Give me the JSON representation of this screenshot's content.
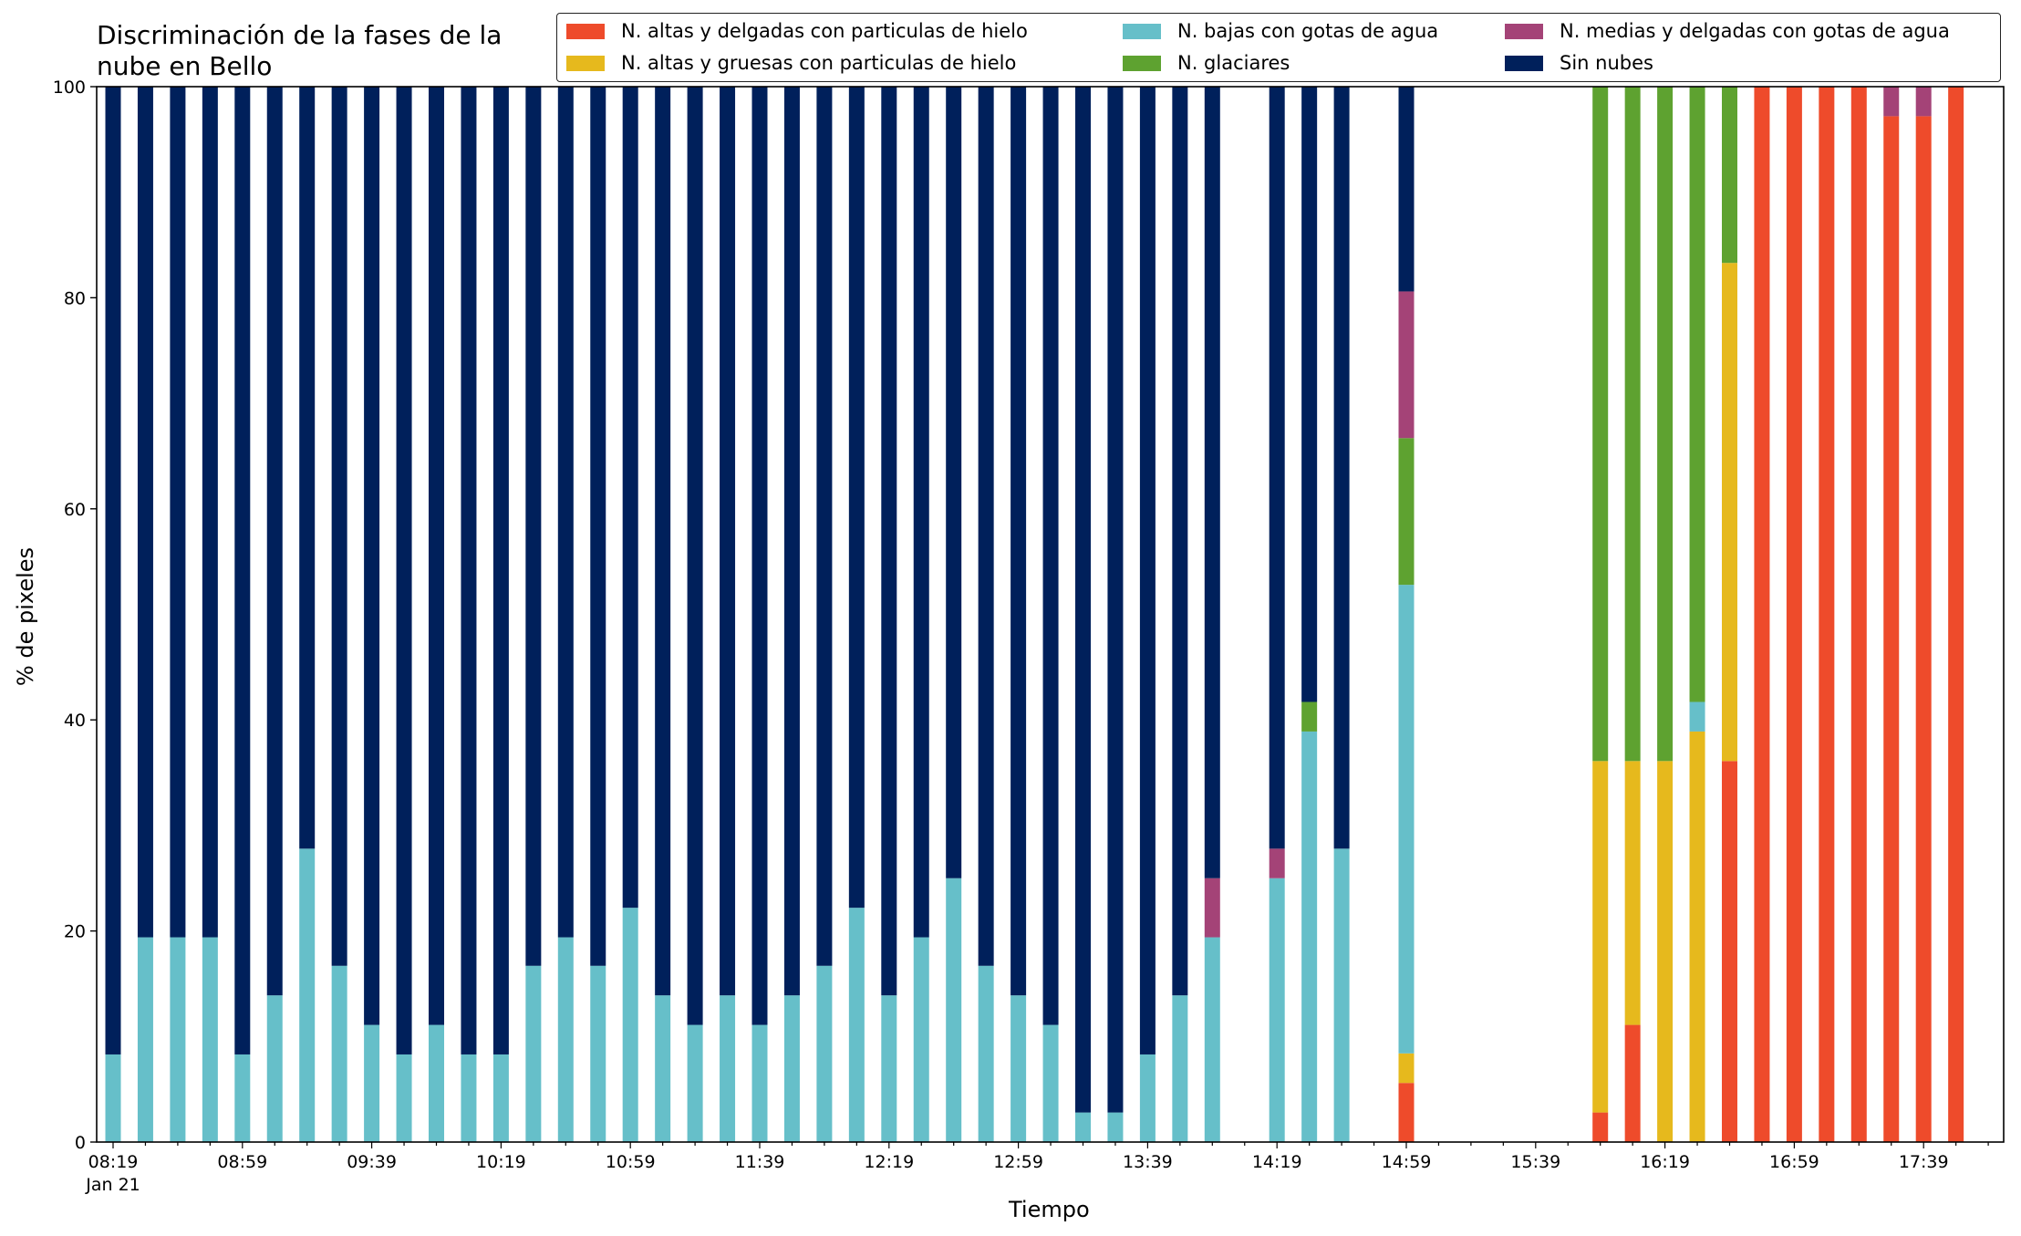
{
  "chart_data": {
    "type": "bar",
    "stacked": true,
    "title_lines": [
      "Discriminación de la fases de la",
      "nube en Bello"
    ],
    "xlabel": "Tiempo",
    "ylabel": "% de pixeles",
    "ylim": [
      0,
      100
    ],
    "y_ticks": [
      0,
      20,
      40,
      60,
      80,
      100
    ],
    "x_tick_labels": [
      "08:19",
      "08:59",
      "09:39",
      "10:19",
      "10:59",
      "11:39",
      "12:19",
      "12:59",
      "13:39",
      "14:19",
      "14:59",
      "15:39",
      "16:19",
      "16:59",
      "17:39"
    ],
    "x_date_label": "Jan 21",
    "x_start": "08:19",
    "interval_minutes": 10,
    "slot_count": 59,
    "legend_placement": "top-right",
    "legend_columns": 3,
    "grid": false,
    "series": [
      {
        "name": "N. altas y delgadas con particulas de hielo",
        "color": "#ee4b2b"
      },
      {
        "name": "N. altas y gruesas con particulas de hielo",
        "color": "#e6b91d"
      },
      {
        "name": "N. bajas con gotas de agua",
        "color": "#66bfc9"
      },
      {
        "name": "N. glaciares",
        "color": "#5ea230"
      },
      {
        "name": "N. medias y delgadas con gotas de agua",
        "color": "#a44377"
      },
      {
        "name": "Sin nubes",
        "color": "#00205b"
      }
    ],
    "bars": [
      {
        "time": "08:19",
        "values": [
          0,
          0,
          8.3,
          0,
          0,
          91.7
        ]
      },
      {
        "time": "08:29",
        "values": [
          0,
          0,
          19.4,
          0,
          0,
          80.6
        ]
      },
      {
        "time": "08:39",
        "values": [
          0,
          0,
          19.4,
          0,
          0,
          80.6
        ]
      },
      {
        "time": "08:49",
        "values": [
          0,
          0,
          19.4,
          0,
          0,
          80.6
        ]
      },
      {
        "time": "08:59",
        "values": [
          0,
          0,
          8.3,
          0,
          0,
          91.7
        ]
      },
      {
        "time": "09:09",
        "values": [
          0,
          0,
          13.9,
          0,
          0,
          86.1
        ]
      },
      {
        "time": "09:19",
        "values": [
          0,
          0,
          27.8,
          0,
          0,
          72.2
        ]
      },
      {
        "time": "09:29",
        "values": [
          0,
          0,
          16.7,
          0,
          0,
          83.3
        ]
      },
      {
        "time": "09:39",
        "values": [
          0,
          0,
          11.1,
          0,
          0,
          88.9
        ]
      },
      {
        "time": "09:49",
        "values": [
          0,
          0,
          8.3,
          0,
          0,
          91.7
        ]
      },
      {
        "time": "09:59",
        "values": [
          0,
          0,
          11.1,
          0,
          0,
          88.9
        ]
      },
      {
        "time": "10:09",
        "values": [
          0,
          0,
          8.3,
          0,
          0,
          91.7
        ]
      },
      {
        "time": "10:19",
        "values": [
          0,
          0,
          8.3,
          0,
          0,
          91.7
        ]
      },
      {
        "time": "10:29",
        "values": [
          0,
          0,
          16.7,
          0,
          0,
          83.3
        ]
      },
      {
        "time": "10:39",
        "values": [
          0,
          0,
          19.4,
          0,
          0,
          80.6
        ]
      },
      {
        "time": "10:49",
        "values": [
          0,
          0,
          16.7,
          0,
          0,
          83.3
        ]
      },
      {
        "time": "10:59",
        "values": [
          0,
          0,
          22.2,
          0,
          0,
          77.8
        ]
      },
      {
        "time": "11:09",
        "values": [
          0,
          0,
          13.9,
          0,
          0,
          86.1
        ]
      },
      {
        "time": "11:19",
        "values": [
          0,
          0,
          11.1,
          0,
          0,
          88.9
        ]
      },
      {
        "time": "11:29",
        "values": [
          0,
          0,
          13.9,
          0,
          0,
          86.1
        ]
      },
      {
        "time": "11:39",
        "values": [
          0,
          0,
          11.1,
          0,
          0,
          88.9
        ]
      },
      {
        "time": "11:49",
        "values": [
          0,
          0,
          13.9,
          0,
          0,
          86.1
        ]
      },
      {
        "time": "11:59",
        "values": [
          0,
          0,
          16.7,
          0,
          0,
          83.3
        ]
      },
      {
        "time": "12:09",
        "values": [
          0,
          0,
          22.2,
          0,
          0,
          77.8
        ]
      },
      {
        "time": "12:19",
        "values": [
          0,
          0,
          13.9,
          0,
          0,
          86.1
        ]
      },
      {
        "time": "12:29",
        "values": [
          0,
          0,
          19.4,
          0,
          0,
          80.6
        ]
      },
      {
        "time": "12:39",
        "values": [
          0,
          0,
          25.0,
          0,
          0,
          75.0
        ]
      },
      {
        "time": "12:49",
        "values": [
          0,
          0,
          16.7,
          0,
          0,
          83.3
        ]
      },
      {
        "time": "12:59",
        "values": [
          0,
          0,
          13.9,
          0,
          0,
          86.1
        ]
      },
      {
        "time": "13:09",
        "values": [
          0,
          0,
          11.1,
          0,
          0,
          88.9
        ]
      },
      {
        "time": "13:19",
        "values": [
          0,
          0,
          2.8,
          0,
          0,
          97.2
        ]
      },
      {
        "time": "13:29",
        "values": [
          0,
          0,
          2.8,
          0,
          0,
          97.2
        ]
      },
      {
        "time": "13:39",
        "values": [
          0,
          0,
          8.3,
          0,
          0,
          91.7
        ]
      },
      {
        "time": "13:49",
        "values": [
          0,
          0,
          13.9,
          0,
          0,
          86.1
        ]
      },
      {
        "time": "13:59",
        "values": [
          0,
          0,
          19.4,
          0,
          5.6,
          75.0
        ]
      },
      {
        "time": "14:09",
        "values": [
          0,
          0,
          0,
          0,
          0,
          0
        ]
      },
      {
        "time": "14:19",
        "values": [
          0,
          0,
          25.0,
          0,
          2.8,
          72.2
        ]
      },
      {
        "time": "14:29",
        "values": [
          0,
          0,
          38.9,
          2.8,
          0,
          58.3
        ]
      },
      {
        "time": "14:39",
        "values": [
          0,
          0,
          27.8,
          0,
          0,
          72.2
        ]
      },
      {
        "time": "14:49",
        "values": [
          0,
          0,
          0,
          0,
          0,
          0
        ]
      },
      {
        "time": "14:59",
        "values": [
          5.6,
          2.8,
          44.4,
          13.9,
          13.9,
          19.4
        ]
      },
      {
        "time": "15:09",
        "values": [
          0,
          0,
          0,
          0,
          0,
          0
        ]
      },
      {
        "time": "15:19",
        "values": [
          0,
          0,
          0,
          0,
          0,
          0
        ]
      },
      {
        "time": "15:29",
        "values": [
          0,
          0,
          0,
          0,
          0,
          0
        ]
      },
      {
        "time": "15:39",
        "values": [
          0,
          0,
          0,
          0,
          0,
          0
        ]
      },
      {
        "time": "15:49",
        "values": [
          0,
          0,
          0,
          0,
          0,
          0
        ]
      },
      {
        "time": "15:59",
        "values": [
          2.8,
          33.3,
          0,
          63.9,
          0,
          0
        ]
      },
      {
        "time": "16:09",
        "values": [
          11.1,
          25.0,
          0,
          63.9,
          0,
          0
        ]
      },
      {
        "time": "16:19",
        "values": [
          0,
          36.1,
          0,
          63.9,
          0,
          0
        ]
      },
      {
        "time": "16:29",
        "values": [
          0,
          38.9,
          2.8,
          58.3,
          0,
          0
        ]
      },
      {
        "time": "16:39",
        "values": [
          36.1,
          47.2,
          0,
          16.7,
          0,
          0
        ]
      },
      {
        "time": "16:49",
        "values": [
          100,
          0,
          0,
          0,
          0,
          0
        ]
      },
      {
        "time": "16:59",
        "values": [
          100,
          0,
          0,
          0,
          0,
          0
        ]
      },
      {
        "time": "17:09",
        "values": [
          100,
          0,
          0,
          0,
          0,
          0
        ]
      },
      {
        "time": "17:19",
        "values": [
          100,
          0,
          0,
          0,
          0,
          0
        ]
      },
      {
        "time": "17:29",
        "values": [
          97.2,
          0,
          0,
          0,
          2.8,
          0
        ]
      },
      {
        "time": "17:39",
        "values": [
          97.2,
          0,
          0,
          0,
          2.8,
          0
        ]
      },
      {
        "time": "17:49",
        "values": [
          100,
          0,
          0,
          0,
          0,
          0
        ]
      },
      {
        "time": "17:59",
        "values": [
          0,
          0,
          0,
          0,
          0,
          0
        ]
      }
    ]
  }
}
